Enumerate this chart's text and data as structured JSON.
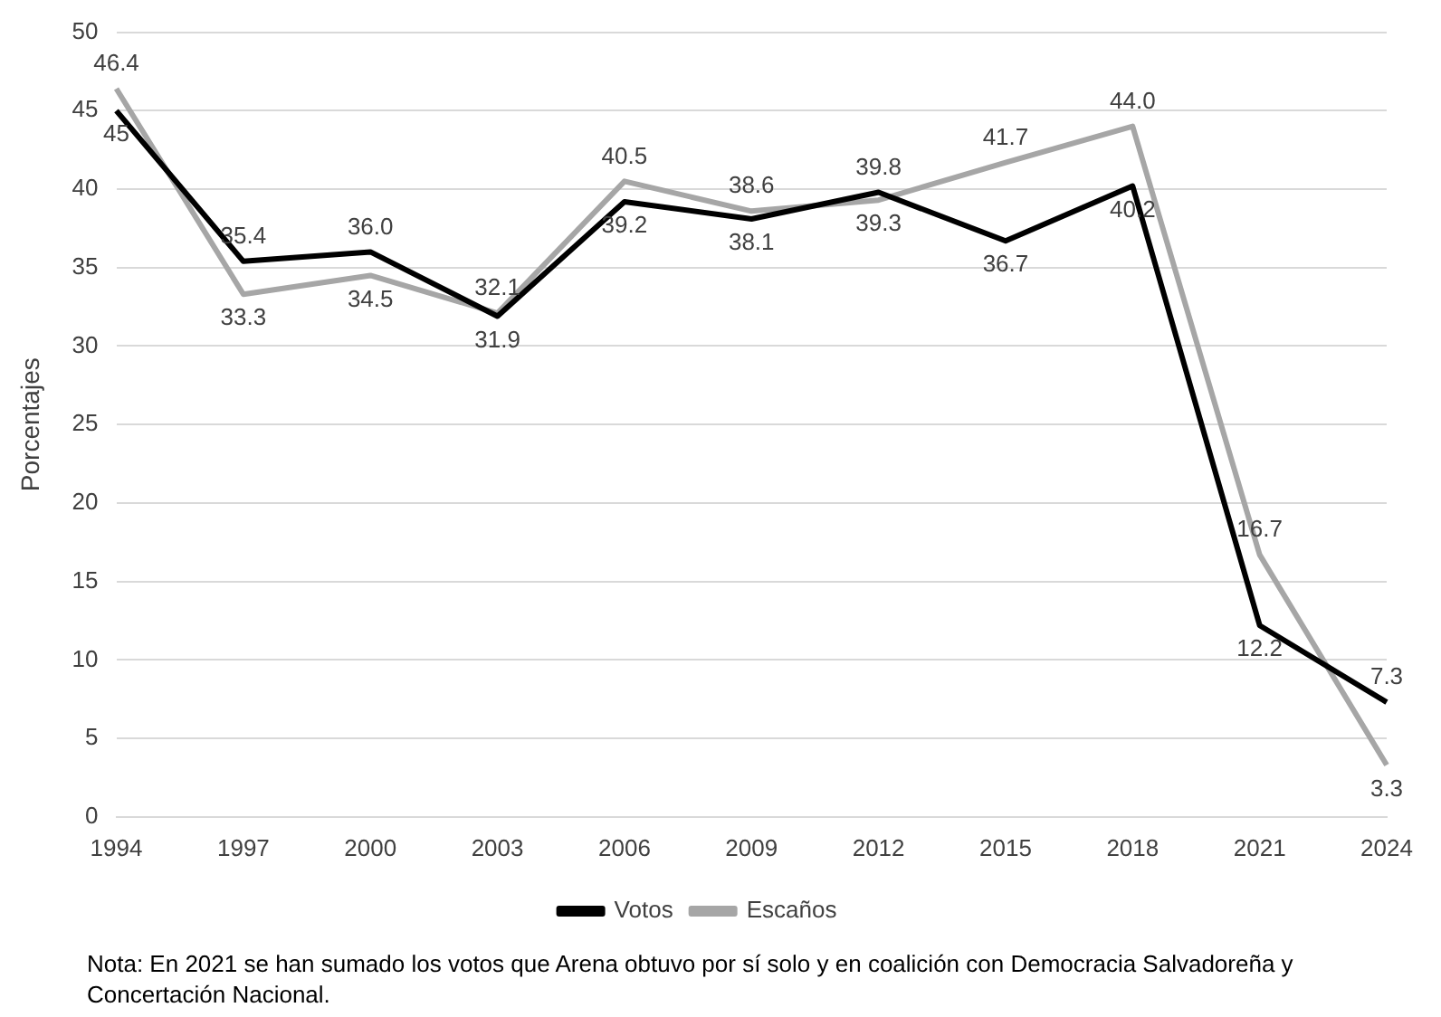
{
  "chart_data": {
    "type": "line",
    "ylabel": "Porcentajes",
    "categories": [
      "1994",
      "1997",
      "2000",
      "2003",
      "2006",
      "2009",
      "2012",
      "2015",
      "2018",
      "2021",
      "2024"
    ],
    "series": [
      {
        "name": "Votos",
        "color": "#000000",
        "values": [
          45,
          35.4,
          36.0,
          31.9,
          39.2,
          38.1,
          39.8,
          36.7,
          40.2,
          12.2,
          7.3
        ],
        "value_labels": [
          "45",
          "35.4",
          "36.0",
          "31.9",
          "39.2",
          "38.1",
          "39.8",
          "36.7",
          "40.2",
          "12.2",
          "7.3"
        ]
      },
      {
        "name": "Escaños",
        "color": "#a6a6a6",
        "values": [
          46.4,
          33.3,
          34.5,
          32.1,
          40.5,
          38.6,
          39.3,
          41.7,
          44.0,
          16.7,
          3.3
        ],
        "value_labels": [
          "46.4",
          "33.3",
          "34.5",
          "32.1",
          "40.5",
          "38.6",
          "39.3",
          "41.7",
          "44.0",
          "16.7",
          "3.3"
        ]
      }
    ],
    "ylim": [
      0,
      50
    ],
    "yticks": [
      0,
      5,
      10,
      15,
      20,
      25,
      30,
      35,
      40,
      45,
      50
    ],
    "grid": "y",
    "legend": "bottom",
    "marker": "none",
    "line_style": "solid",
    "annotations": [
      "Nota: En 2021 se han sumado los votos que Arena obtuvo por sí solo y en coalición con Democracia Salvadoreña y Concertación Nacional."
    ]
  }
}
